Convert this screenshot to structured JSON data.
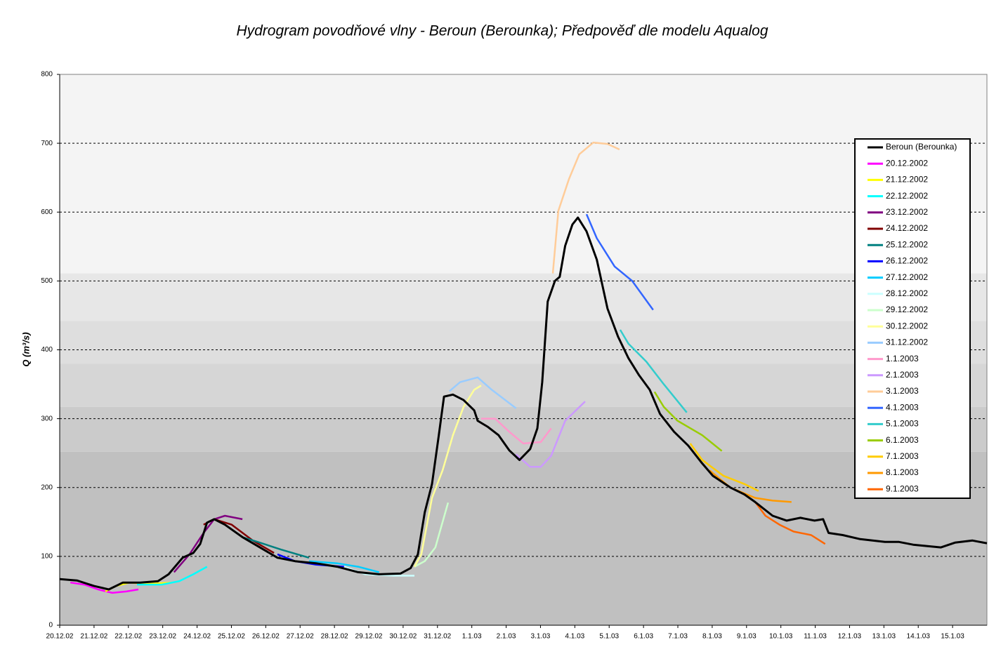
{
  "chart_data": {
    "type": "line",
    "title": "Hydrogram povodňové vlny - Beroun (Berounka); Předpověď dle modelu Aqualog",
    "y_label": "Q (m³/s)",
    "xlim": [
      0,
      27
    ],
    "xticks": [
      {
        "value": 0,
        "label": "20.12.02"
      },
      {
        "value": 1,
        "label": "21.12.02"
      },
      {
        "value": 2,
        "label": "22.12.02"
      },
      {
        "value": 3,
        "label": "23.12.02"
      },
      {
        "value": 4,
        "label": "24.12.02"
      },
      {
        "value": 5,
        "label": "25.12.02"
      },
      {
        "value": 6,
        "label": "26.12.02"
      },
      {
        "value": 7,
        "label": "27.12.02"
      },
      {
        "value": 8,
        "label": "28.12.02"
      },
      {
        "value": 9,
        "label": "29.12.02"
      },
      {
        "value": 10,
        "label": "30.12.02"
      },
      {
        "value": 11,
        "label": "31.12.02"
      },
      {
        "value": 12,
        "label": "1.1.03"
      },
      {
        "value": 13,
        "label": "2.1.03"
      },
      {
        "value": 14,
        "label": "3.1.03"
      },
      {
        "value": 15,
        "label": "4.1.03"
      },
      {
        "value": 16,
        "label": "5.1.03"
      },
      {
        "value": 17,
        "label": "6.1.03"
      },
      {
        "value": 18,
        "label": "7.1.03"
      },
      {
        "value": 19,
        "label": "8.1.03"
      },
      {
        "value": 20,
        "label": "9.1.03"
      },
      {
        "value": 21,
        "label": "10.1.03"
      },
      {
        "value": 22,
        "label": "11.1.03"
      },
      {
        "value": 23,
        "label": "12.1.03"
      },
      {
        "value": 24,
        "label": "13.1.03"
      },
      {
        "value": 25,
        "label": "14.1.03"
      },
      {
        "value": 26,
        "label": "15.1.03"
      }
    ],
    "ylim": [
      0,
      800
    ],
    "yticks": [
      0,
      100,
      200,
      300,
      400,
      500,
      600,
      700,
      800
    ],
    "grid": true,
    "legend": "right",
    "plot_background": "#f4f4f4",
    "bands": [
      {
        "from": 0,
        "to": 252,
        "color": "#c0c0c0"
      },
      {
        "from": 252,
        "to": 317,
        "color": "#cbcbcb"
      },
      {
        "from": 317,
        "to": 380,
        "color": "#d6d6d6"
      },
      {
        "from": 380,
        "to": 442,
        "color": "#dedede"
      },
      {
        "from": 442,
        "to": 511,
        "color": "#e7e7e7"
      }
    ],
    "series": [
      {
        "name": "Beroun (Berounka)",
        "color": "#000000",
        "x": [
          0,
          0.5,
          1.0,
          1.43,
          1.84,
          2.35,
          2.86,
          3.17,
          3.58,
          3.89,
          4.09,
          4.29,
          4.5,
          4.81,
          5.32,
          5.83,
          6.34,
          6.85,
          7.46,
          8.08,
          8.69,
          9.3,
          9.92,
          10.22,
          10.43,
          10.63,
          10.84,
          11.04,
          11.19,
          11.45,
          11.76,
          12.07,
          12.17,
          12.47,
          12.78,
          13.09,
          13.39,
          13.7,
          13.91,
          14.05,
          14.21,
          14.42,
          14.56,
          14.72,
          14.93,
          15.09,
          15.34,
          15.64,
          15.95,
          16.26,
          16.56,
          16.87,
          17.18,
          17.48,
          17.89,
          18.3,
          18.71,
          19.02,
          19.53,
          19.94,
          20.25,
          20.76,
          21.17,
          21.57,
          21.98,
          22.23,
          22.39,
          22.8,
          23.31,
          24.03,
          24.44,
          24.85,
          25.66,
          26.07,
          26.58,
          27.0
        ],
        "values": [
          67,
          65,
          57,
          52,
          62,
          62,
          64,
          74,
          98,
          105,
          118,
          149,
          154,
          146,
          128,
          113,
          98,
          93,
          90,
          85,
          77,
          74,
          75,
          83,
          103,
          164,
          205,
          276,
          332,
          335,
          327,
          312,
          297,
          288,
          276,
          254,
          240,
          256,
          286,
          353,
          470,
          500,
          506,
          551,
          582,
          592,
          572,
          531,
          460,
          419,
          388,
          363,
          342,
          307,
          281,
          261,
          235,
          217,
          200,
          190,
          179,
          159,
          152,
          156,
          152,
          154,
          134,
          131,
          125,
          121,
          121,
          117,
          113,
          120,
          123,
          119
        ]
      },
      {
        "name": "20.12.2002",
        "color": "#ff00ff",
        "x": [
          0.31,
          0.72,
          1.12,
          1.53,
          1.94,
          2.29
        ],
        "values": [
          62,
          59,
          52,
          47,
          49,
          52
        ]
      },
      {
        "name": "21.12.2002",
        "color": "#ffff00",
        "x": [
          1.33,
          1.64,
          2.04,
          2.56,
          3.27
        ],
        "values": [
          49,
          57,
          62,
          60,
          62
        ]
      },
      {
        "name": "22.12.2002",
        "color": "#00ffff",
        "x": [
          2.25,
          2.97,
          3.48,
          3.89,
          4.29
        ],
        "values": [
          59,
          59,
          64,
          74,
          85
        ]
      },
      {
        "name": "23.12.2002",
        "color": "#800080",
        "x": [
          3.33,
          3.78,
          4.19,
          4.5,
          4.81,
          5.32
        ],
        "values": [
          77,
          103,
          134,
          154,
          159,
          154
        ]
      },
      {
        "name": "24.12.2002",
        "color": "#800000",
        "x": [
          4.19,
          4.5,
          5.01,
          5.62,
          6.24
        ],
        "values": [
          146,
          154,
          146,
          123,
          105
        ]
      },
      {
        "name": "25.12.2002",
        "color": "#008080",
        "x": [
          5.32,
          5.83,
          6.44,
          7.26
        ],
        "values": [
          128,
          120,
          110,
          98
        ]
      },
      {
        "name": "26.12.2002",
        "color": "#0000ff",
        "x": [
          6.34,
          6.85,
          7.46,
          8.28
        ],
        "values": [
          103,
          93,
          88,
          85
        ]
      },
      {
        "name": "27.12.2002",
        "color": "#00ccff",
        "x": [
          7.26,
          8.08,
          8.69,
          9.3
        ],
        "values": [
          93,
          90,
          85,
          77
        ]
      },
      {
        "name": "28.12.2002",
        "color": "#ccffff",
        "x": [
          8.28,
          8.9,
          9.71,
          10.33
        ],
        "values": [
          85,
          74,
          72,
          72
        ]
      },
      {
        "name": "29.12.2002",
        "color": "#ccffcc",
        "x": [
          10.33,
          10.63,
          10.94,
          11.31
        ],
        "values": [
          85,
          93,
          113,
          178
        ]
      },
      {
        "name": "30.12.2002",
        "color": "#ffff99",
        "x": [
          10.33,
          10.53,
          10.84,
          11.15,
          11.45,
          11.76,
          12.07,
          12.27
        ],
        "values": [
          85,
          103,
          185,
          225,
          276,
          317,
          342,
          348
        ]
      },
      {
        "name": "31.12.2002",
        "color": "#99ccff",
        "x": [
          11.35,
          11.66,
          12.17,
          12.58,
          13.29
        ],
        "values": [
          340,
          353,
          360,
          342,
          315
        ]
      },
      {
        "name": "1.1.2003",
        "color": "#ff99cc",
        "x": [
          12.27,
          12.68,
          13.09,
          13.5,
          14.01,
          14.31
        ],
        "values": [
          300,
          300,
          281,
          264,
          266,
          286
        ]
      },
      {
        "name": "2.1.2003",
        "color": "#cc99ff",
        "x": [
          13.29,
          13.7,
          14.01,
          14.31,
          14.72,
          15.3
        ],
        "values": [
          248,
          230,
          230,
          246,
          297,
          325
        ]
      },
      {
        "name": "3.1.2003",
        "color": "#ffcc99",
        "x": [
          14.36,
          14.52,
          14.83,
          15.13,
          15.54,
          15.95,
          16.3
        ],
        "values": [
          511,
          602,
          648,
          684,
          701,
          699,
          691
        ]
      },
      {
        "name": "4.1.2003",
        "color": "#3366ff",
        "x": [
          15.34,
          15.64,
          16.16,
          16.67,
          17.28
        ],
        "values": [
          597,
          562,
          521,
          500,
          458
        ]
      },
      {
        "name": "5.1.2003",
        "color": "#33cccc",
        "x": [
          16.32,
          16.56,
          17.08,
          17.59,
          18.26
        ],
        "values": [
          429,
          409,
          383,
          350,
          309
        ]
      },
      {
        "name": "6.1.2003",
        "color": "#99cc00",
        "x": [
          17.32,
          17.59,
          17.99,
          18.71,
          19.28
        ],
        "values": [
          339,
          317,
          297,
          276,
          253
        ]
      },
      {
        "name": "7.1.2003",
        "color": "#ffcc00",
        "x": [
          18.36,
          18.71,
          19.33,
          19.94,
          20.35
        ],
        "values": [
          264,
          240,
          217,
          205,
          195
        ]
      },
      {
        "name": "8.1.2003",
        "color": "#ff9900",
        "x": [
          18.92,
          19.53,
          20.25,
          20.76,
          21.31
        ],
        "values": [
          225,
          200,
          185,
          181,
          179
        ]
      },
      {
        "name": "9.1.2003",
        "color": "#ff6600",
        "x": [
          20.25,
          20.55,
          20.96,
          21.37,
          21.88,
          22.29
        ],
        "values": [
          179,
          159,
          146,
          136,
          131,
          118
        ]
      }
    ]
  }
}
